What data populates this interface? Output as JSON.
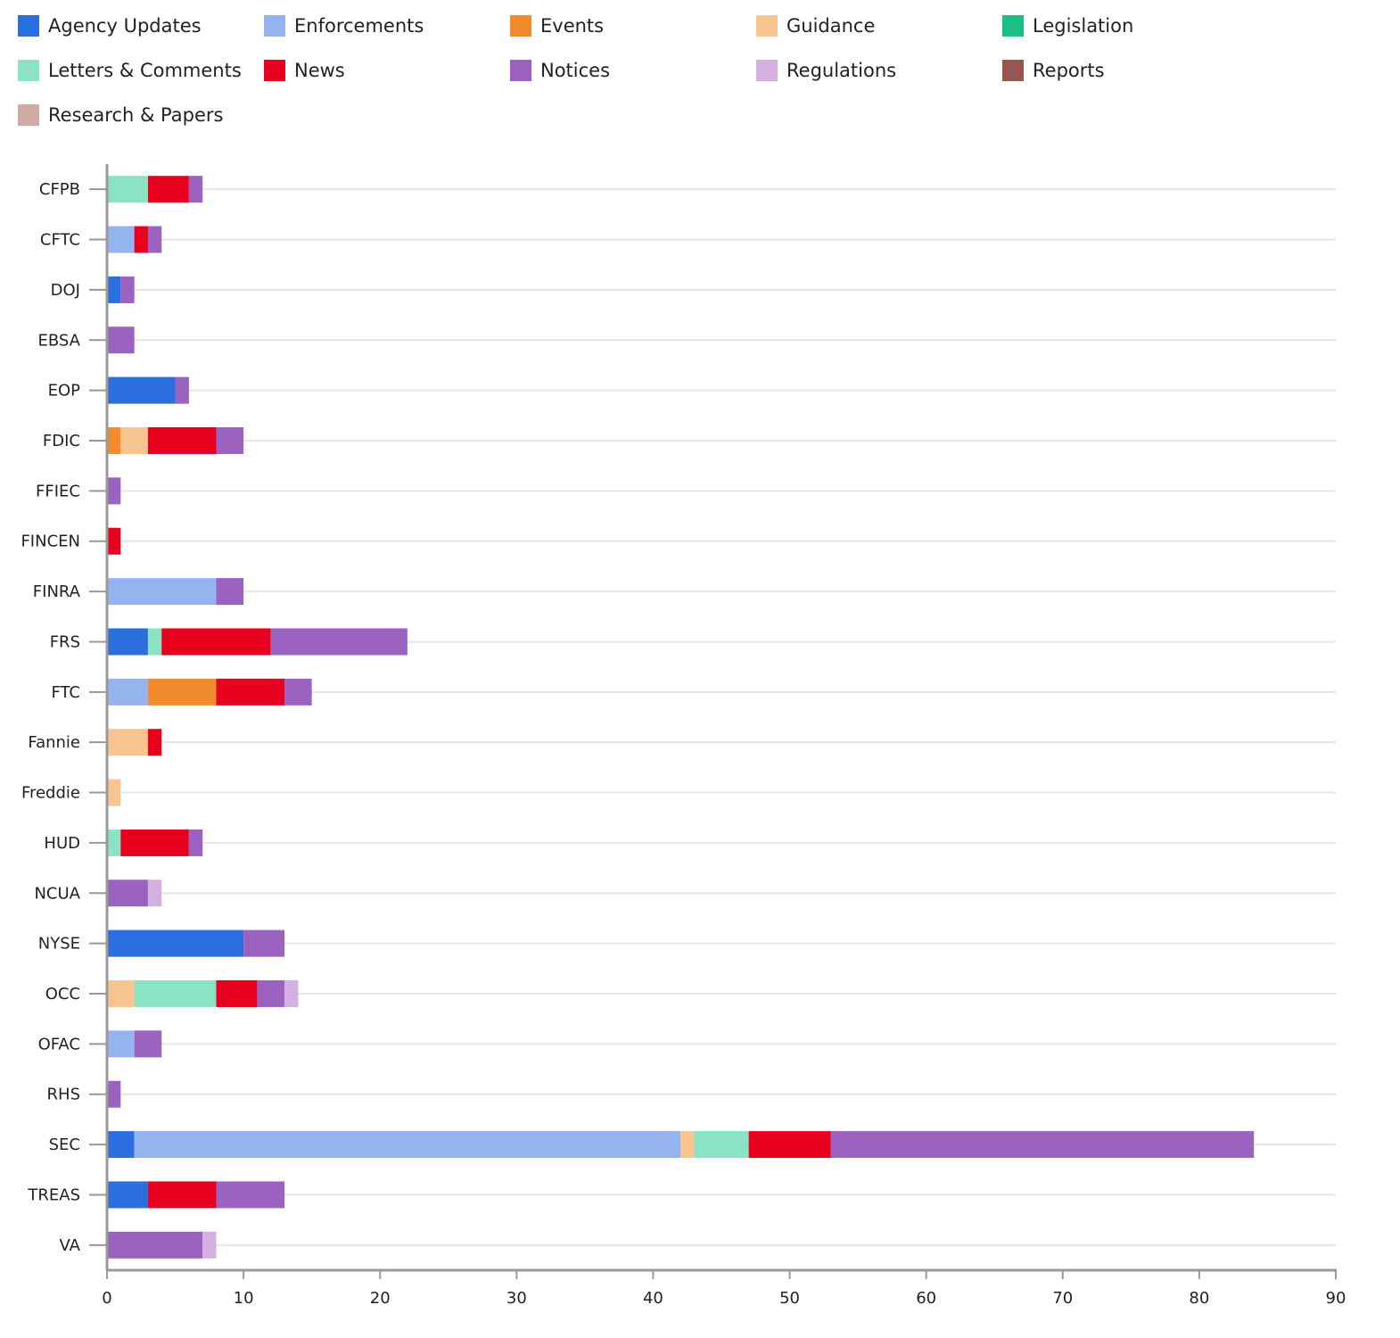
{
  "chart_data": {
    "type": "bar",
    "orientation": "horizontal",
    "stacked": true,
    "title": "",
    "xlabel": "",
    "ylabel": "",
    "xlim": [
      0,
      90
    ],
    "xticks": [
      0,
      10,
      20,
      30,
      40,
      50,
      60,
      70,
      80,
      90
    ],
    "grid": true,
    "legend_position": "top",
    "categories": [
      "CFPB",
      "CFTC",
      "DOJ",
      "EBSA",
      "EOP",
      "FDIC",
      "FFIEC",
      "FINCEN",
      "FINRA",
      "FRS",
      "FTC",
      "Fannie",
      "Freddie",
      "HUD",
      "NCUA",
      "NYSE",
      "OCC",
      "OFAC",
      "RHS",
      "SEC",
      "TREAS",
      "VA"
    ],
    "series": [
      {
        "name": "Agency Updates",
        "color": "#2b6fde",
        "values": [
          0,
          0,
          1,
          0,
          5,
          0,
          0,
          0,
          0,
          3,
          0,
          0,
          0,
          0,
          0,
          10,
          0,
          0,
          0,
          2,
          3,
          0
        ]
      },
      {
        "name": "Enforcements",
        "color": "#95b4ef",
        "values": [
          0,
          2,
          0,
          0,
          0,
          0,
          0,
          0,
          8,
          0,
          3,
          0,
          0,
          0,
          0,
          0,
          0,
          2,
          0,
          40,
          0,
          0
        ]
      },
      {
        "name": "Events",
        "color": "#f28a2e",
        "values": [
          0,
          0,
          0,
          0,
          0,
          1,
          0,
          0,
          0,
          0,
          5,
          0,
          0,
          0,
          0,
          0,
          0,
          0,
          0,
          0,
          0,
          0
        ]
      },
      {
        "name": "Guidance",
        "color": "#f8c48f",
        "values": [
          0,
          0,
          0,
          0,
          0,
          2,
          0,
          0,
          0,
          0,
          0,
          3,
          1,
          0,
          0,
          0,
          2,
          0,
          0,
          1,
          0,
          0
        ]
      },
      {
        "name": "Legislation",
        "color": "#1bbf83",
        "values": [
          0,
          0,
          0,
          0,
          0,
          0,
          0,
          0,
          0,
          0,
          0,
          0,
          0,
          0,
          0,
          0,
          0,
          0,
          0,
          0,
          0,
          0
        ]
      },
      {
        "name": "Letters & Comments",
        "color": "#8ce3c3",
        "values": [
          3,
          0,
          0,
          0,
          0,
          0,
          0,
          0,
          0,
          1,
          0,
          0,
          0,
          1,
          0,
          0,
          6,
          0,
          0,
          4,
          0,
          0
        ]
      },
      {
        "name": "News",
        "color": "#e8001f",
        "values": [
          3,
          1,
          0,
          0,
          0,
          5,
          0,
          1,
          0,
          8,
          5,
          1,
          0,
          5,
          0,
          0,
          3,
          0,
          0,
          6,
          5,
          0
        ]
      },
      {
        "name": "Notices",
        "color": "#9b62c0",
        "values": [
          1,
          1,
          1,
          2,
          1,
          2,
          1,
          0,
          2,
          10,
          2,
          0,
          0,
          1,
          3,
          3,
          2,
          2,
          1,
          31,
          5,
          7
        ]
      },
      {
        "name": "Regulations",
        "color": "#d2b1e0",
        "values": [
          0,
          0,
          0,
          0,
          0,
          0,
          0,
          0,
          0,
          0,
          0,
          0,
          0,
          0,
          1,
          0,
          1,
          0,
          0,
          0,
          0,
          1
        ]
      },
      {
        "name": "Reports",
        "color": "#975650",
        "values": [
          0,
          0,
          0,
          0,
          0,
          0,
          0,
          0,
          0,
          0,
          0,
          0,
          0,
          0,
          0,
          0,
          0,
          0,
          0,
          0,
          0,
          0
        ]
      },
      {
        "name": "Research & Papers",
        "color": "#cfaaa3",
        "values": [
          0,
          0,
          0,
          0,
          0,
          0,
          0,
          0,
          0,
          0,
          0,
          0,
          0,
          0,
          0,
          0,
          0,
          0,
          0,
          0,
          0,
          0
        ]
      }
    ]
  }
}
